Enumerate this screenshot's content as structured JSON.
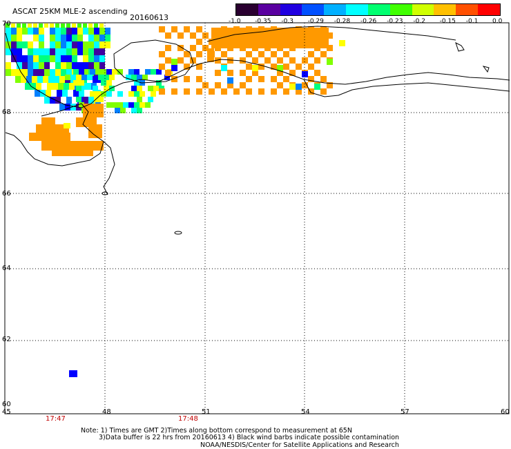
{
  "header": {
    "title": "ASCAT 25KM MLE-2 ascending",
    "date": "20160613"
  },
  "colorbar": {
    "ticks": [
      "-1.0",
      "-0.35",
      "-0.3",
      "-0.29",
      "-0.28",
      "-0.26",
      "-0.23",
      "-0.2",
      "-0.15",
      "-0.1",
      "0.0"
    ],
    "colors": [
      "#3a0050",
      "#4000c0",
      "#0030ff",
      "#0090ff",
      "#00e0ff",
      "#00ffb0",
      "#20ff40",
      "#b0ff00",
      "#ffff00",
      "#ff9900",
      "#ff0000"
    ]
  },
  "map": {
    "lat_labels": [
      "70",
      "68",
      "66",
      "64",
      "62",
      "60"
    ],
    "lon_labels": [
      "45",
      "48",
      "51",
      "54",
      "57",
      "60"
    ],
    "time_labels": [
      "17:47",
      "17:48"
    ],
    "fill_color": "#ff9900"
  },
  "notes": {
    "line1": "Note: 1) Times are GMT 2)Times along bottom correspond to measurement at 65N",
    "line2": "3)Data buffer is 22 hrs from 20160613 4) Black wind barbs indicate possible contamination",
    "line3": "NOAA/NESDIS/Center for Satellite Applications and Research"
  }
}
